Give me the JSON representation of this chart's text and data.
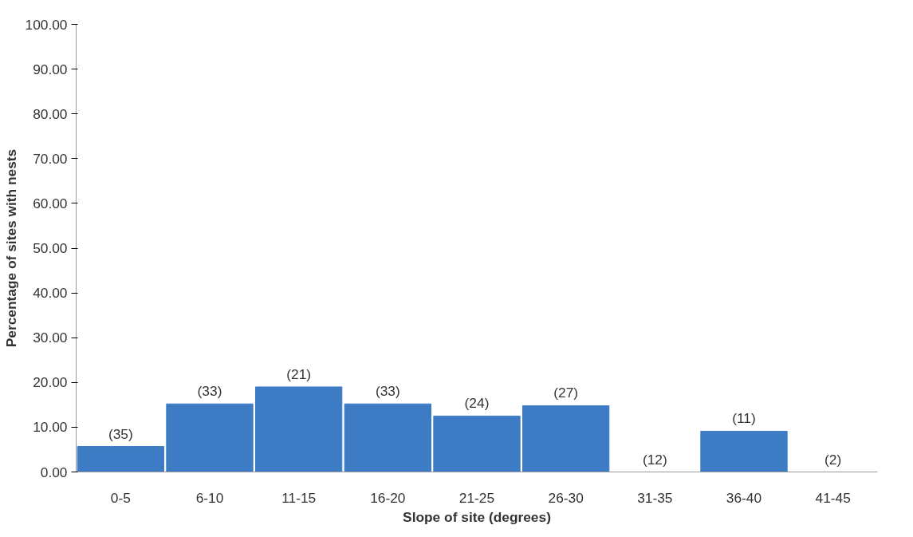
{
  "chart_data": {
    "type": "bar",
    "xlabel": "Slope of site (degrees)",
    "ylabel": "Percentage of sites with nests",
    "categories": [
      "0-5",
      "6-10",
      "11-15",
      "16-20",
      "21-25",
      "26-30",
      "31-35",
      "36-40",
      "41-45"
    ],
    "values": [
      5.7,
      15.2,
      19.0,
      15.2,
      12.5,
      14.8,
      0,
      9.1,
      0
    ],
    "annotations": [
      {
        "text": "(35)",
        "x": "0-5",
        "y": 5.7
      },
      {
        "text": "(33)",
        "x": "6-10",
        "y": 15.2
      },
      {
        "text": "(21)",
        "x": "11-15",
        "y": 19.0
      },
      {
        "text": "(33)",
        "x": "16-20",
        "y": 15.2
      },
      {
        "text": "(24)",
        "x": "21-25",
        "y": 12.5
      },
      {
        "text": "(27)",
        "x": "26-30",
        "y": 14.8
      },
      {
        "text": "(12)",
        "x": "31-35",
        "y": 0
      },
      {
        "text": "(11)",
        "x": "36-40",
        "y": 9.1
      },
      {
        "text": "(2)",
        "x": "41-45",
        "y": 0
      }
    ],
    "color": "#3d7cc4",
    "ylim": [
      0,
      100
    ],
    "yticks": [
      {
        "value": 0,
        "label": "0.00"
      },
      {
        "value": 10,
        "label": "10.00"
      },
      {
        "value": 20,
        "label": "20.00"
      },
      {
        "value": 30,
        "label": "30.00"
      },
      {
        "value": 40,
        "label": "40.00"
      },
      {
        "value": 50,
        "label": "50.00"
      },
      {
        "value": 60,
        "label": "60.00"
      },
      {
        "value": 70,
        "label": "70.00"
      },
      {
        "value": 80,
        "label": "80.00"
      },
      {
        "value": 90,
        "label": "90.00"
      },
      {
        "value": 100,
        "label": "100.00"
      }
    ],
    "grid": false
  }
}
